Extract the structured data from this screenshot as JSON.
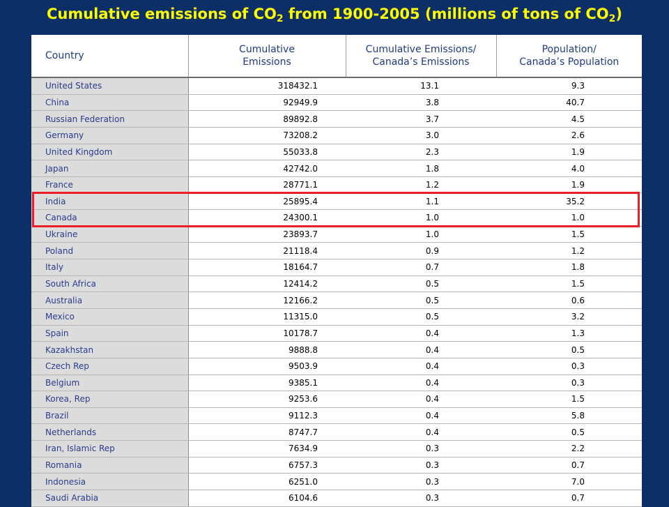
{
  "slide": {
    "title_pre": "Cumulative emissions of CO",
    "title_sub1": "2",
    "title_mid": " from 1900-2005 (millions of tons of CO",
    "title_sub2": "2",
    "title_post": ")"
  },
  "colors": {
    "background": "#0b2f66",
    "title": "#ffff00",
    "highlight_border": "#e8202a",
    "country_cell_bg": "#dcdcdc",
    "country_text": "#2a3b8f"
  },
  "highlighted_countries": [
    "India",
    "Canada"
  ],
  "chart_data": {
    "type": "table",
    "columns": [
      "Country",
      "Cumulative Emissions",
      "Cumulative Emissions/ Canada’s Emissions",
      "Population/ Canada’s Population"
    ],
    "header_lines": [
      [
        "Country"
      ],
      [
        "Cumulative",
        "Emissions"
      ],
      [
        "Cumulative Emissions/",
        "Canada’s Emissions"
      ],
      [
        "Population/",
        "Canada’s Population"
      ]
    ],
    "rows": [
      [
        "United States",
        "318432.1",
        "13.1",
        "9.3"
      ],
      [
        "China",
        "92949.9",
        "3.8",
        "40.7"
      ],
      [
        "Russian Federation",
        "89892.8",
        "3.7",
        "4.5"
      ],
      [
        "Germany",
        "73208.2",
        "3.0",
        "2.6"
      ],
      [
        "United Kingdom",
        "55033.8",
        "2.3",
        "1.9"
      ],
      [
        "Japan",
        "42742.0",
        "1.8",
        "4.0"
      ],
      [
        "France",
        "28771.1",
        "1.2",
        "1.9"
      ],
      [
        "India",
        "25895.4",
        "1.1",
        "35.2"
      ],
      [
        "Canada",
        "24300.1",
        "1.0",
        "1.0"
      ],
      [
        "Ukraine",
        "23893.7",
        "1.0",
        "1.5"
      ],
      [
        "Poland",
        "21118.4",
        "0.9",
        "1.2"
      ],
      [
        "Italy",
        "18164.7",
        "0.7",
        "1.8"
      ],
      [
        "South Africa",
        "12414.2",
        "0.5",
        "1.5"
      ],
      [
        "Australia",
        "12166.2",
        "0.5",
        "0.6"
      ],
      [
        "Mexico",
        "11315.0",
        "0.5",
        "3.2"
      ],
      [
        "Spain",
        "10178.7",
        "0.4",
        "1.3"
      ],
      [
        "Kazakhstan",
        "9888.8",
        "0.4",
        "0.5"
      ],
      [
        "Czech Rep",
        "9503.9",
        "0.4",
        "0.3"
      ],
      [
        "Belgium",
        "9385.1",
        "0.4",
        "0.3"
      ],
      [
        "Korea, Rep",
        "9253.6",
        "0.4",
        "1.5"
      ],
      [
        "Brazil",
        "9112.3",
        "0.4",
        "5.8"
      ],
      [
        "Netherlands",
        "8747.7",
        "0.4",
        "0.5"
      ],
      [
        "Iran, Islamic Rep",
        "7634.9",
        "0.3",
        "2.2"
      ],
      [
        "Romania",
        "6757.3",
        "0.3",
        "0.7"
      ],
      [
        "Indonesia",
        "6251.0",
        "0.3",
        "7.0"
      ],
      [
        "Saudi Arabia",
        "6104.6",
        "0.3",
        "0.7"
      ]
    ]
  }
}
